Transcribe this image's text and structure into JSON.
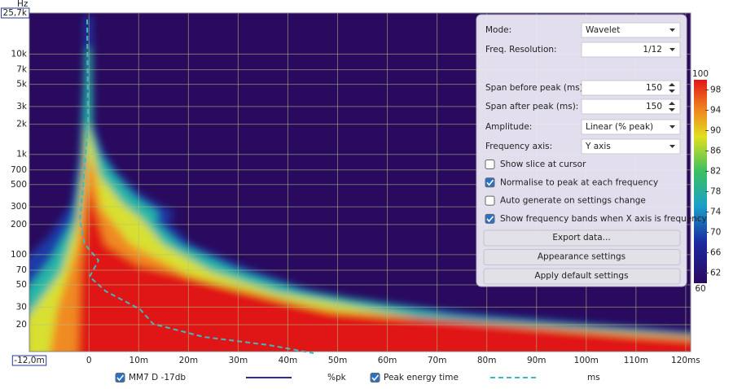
{
  "chart_data": {
    "type": "spectrogram",
    "y_unit": "Hz",
    "xlim": [
      -12,
      121
    ],
    "ylim": [
      10.8,
      25700
    ],
    "log_y": true,
    "grid": true,
    "xticks": [
      {
        "value": -12,
        "label": "-12,0m"
      },
      {
        "value": 0,
        "label": "0"
      },
      {
        "value": 10,
        "label": "10m"
      },
      {
        "value": 20,
        "label": "20m"
      },
      {
        "value": 30,
        "label": "30m"
      },
      {
        "value": 40,
        "label": "40m"
      },
      {
        "value": 50,
        "label": "50m"
      },
      {
        "value": 60,
        "label": "60m"
      },
      {
        "value": 70,
        "label": "70m"
      },
      {
        "value": 80,
        "label": "80m"
      },
      {
        "value": 90,
        "label": "90m"
      },
      {
        "value": 100,
        "label": "100m"
      },
      {
        "value": 110,
        "label": "110m"
      },
      {
        "value": 120,
        "label": "120ms"
      }
    ],
    "yticks": [
      20,
      30,
      50,
      70,
      100,
      200,
      300,
      500,
      700,
      {
        "value": 1000,
        "label": "1k"
      },
      {
        "value": 2000,
        "label": "2k"
      },
      {
        "value": 3000,
        "label": "3k"
      },
      {
        "value": 5000,
        "label": "5k"
      },
      {
        "value": 7000,
        "label": "7k"
      },
      {
        "value": 10000,
        "label": "10k"
      },
      {
        "value": 25700,
        "label": "25,7k"
      }
    ],
    "colorbar": {
      "lim": [
        60,
        100
      ],
      "ticks": [
        60,
        62,
        66,
        70,
        74,
        78,
        82,
        86,
        90,
        94,
        98,
        100
      ]
    },
    "series": [
      {
        "name": "MM7 D -17db",
        "unit": "%pk",
        "checked": true,
        "color": "#2b2b9a",
        "dashed": false
      },
      {
        "name": "Peak energy time",
        "unit": "ms",
        "checked": true,
        "color": "#3fb8c0",
        "dashed": true
      }
    ]
  },
  "panel": {
    "fields": [
      {
        "label": "Mode:",
        "value": "Wavelet"
      },
      {
        "label": "Freq. Resolution:",
        "value": "1/12"
      },
      {
        "label": "Span before peak (ms):",
        "value": 150
      },
      {
        "label": "Span after peak (ms):",
        "value": 150
      },
      {
        "label": "Amplitude:",
        "value": "Linear (% peak)"
      },
      {
        "label": "Frequency axis:",
        "value": "Y axis"
      }
    ],
    "checkboxes": [
      {
        "label": "Show slice at cursor",
        "checked": false
      },
      {
        "label": "Normalise to peak at each frequency",
        "checked": true
      },
      {
        "label": "Auto generate on settings change",
        "checked": false
      },
      {
        "label": "Show frequency bands when X axis is frequency",
        "checked": true
      }
    ],
    "buttons": [
      "Export data...",
      "Appearance settings",
      "Apply default settings"
    ]
  }
}
